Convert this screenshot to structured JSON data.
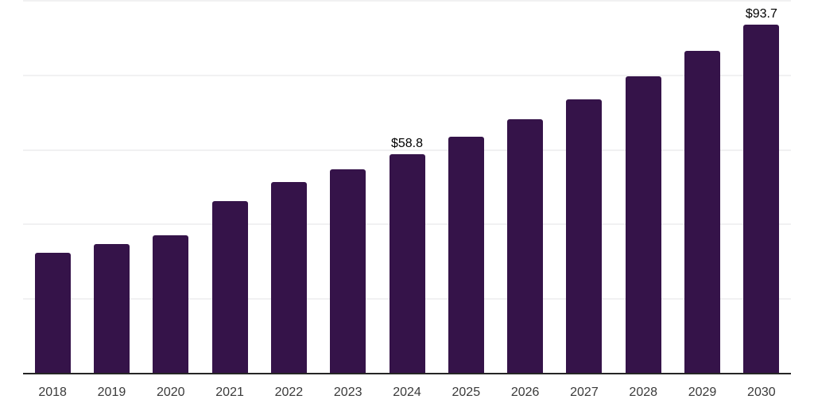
{
  "chart_data": {
    "type": "bar",
    "title": "",
    "xlabel": "",
    "ylabel": "",
    "categories": [
      "2018",
      "2019",
      "2020",
      "2021",
      "2022",
      "2023",
      "2024",
      "2025",
      "2026",
      "2027",
      "2028",
      "2029",
      "2030"
    ],
    "values": [
      32.5,
      34.7,
      37.1,
      46.2,
      51.3,
      54.9,
      58.8,
      63.6,
      68.3,
      73.6,
      79.8,
      86.6,
      93.7
    ],
    "point_labels": [
      "",
      "",
      "",
      "",
      "",
      "",
      "$58.8",
      "",
      "",
      "",
      "",
      "",
      "$93.7"
    ],
    "ylim": [
      0,
      100
    ],
    "gridline_step": 20,
    "grid": "horizontal-only",
    "legend": "none",
    "colors": {
      "bar": "#351349",
      "axis": "#262626",
      "gridline": "#f1f1f2",
      "tick_label": "#3a3a3a",
      "data_label": "#000000",
      "background": "#ffffff"
    }
  }
}
